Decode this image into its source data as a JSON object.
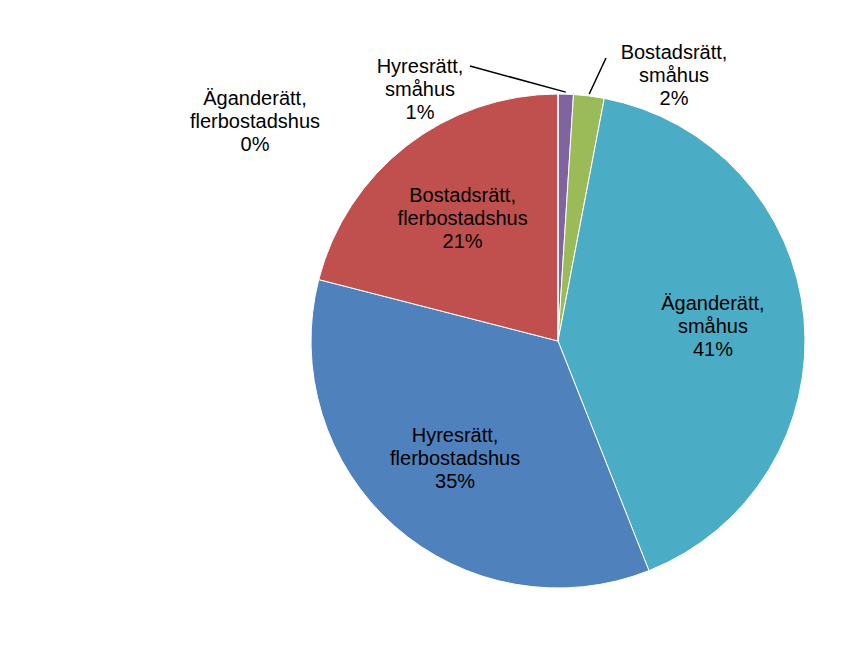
{
  "chart_data": {
    "type": "pie",
    "categories": [
      "Hyresrätt, småhus",
      "Bostadsrätt, småhus",
      "Äganderätt, småhus",
      "Hyresrätt, flerbostadshus",
      "Bostadsrätt, flerbostadshus",
      "Äganderätt, flerbostadshus"
    ],
    "values": [
      1,
      2,
      41,
      35,
      21,
      0
    ],
    "value_labels": [
      "1%",
      "2%",
      "41%",
      "35%",
      "21%",
      "0%"
    ],
    "colors": [
      "#8064a2",
      "#9bbb59",
      "#4bacc6",
      "#4f81bd",
      "#c0504d",
      "#f79646"
    ],
    "data_labels": true
  }
}
